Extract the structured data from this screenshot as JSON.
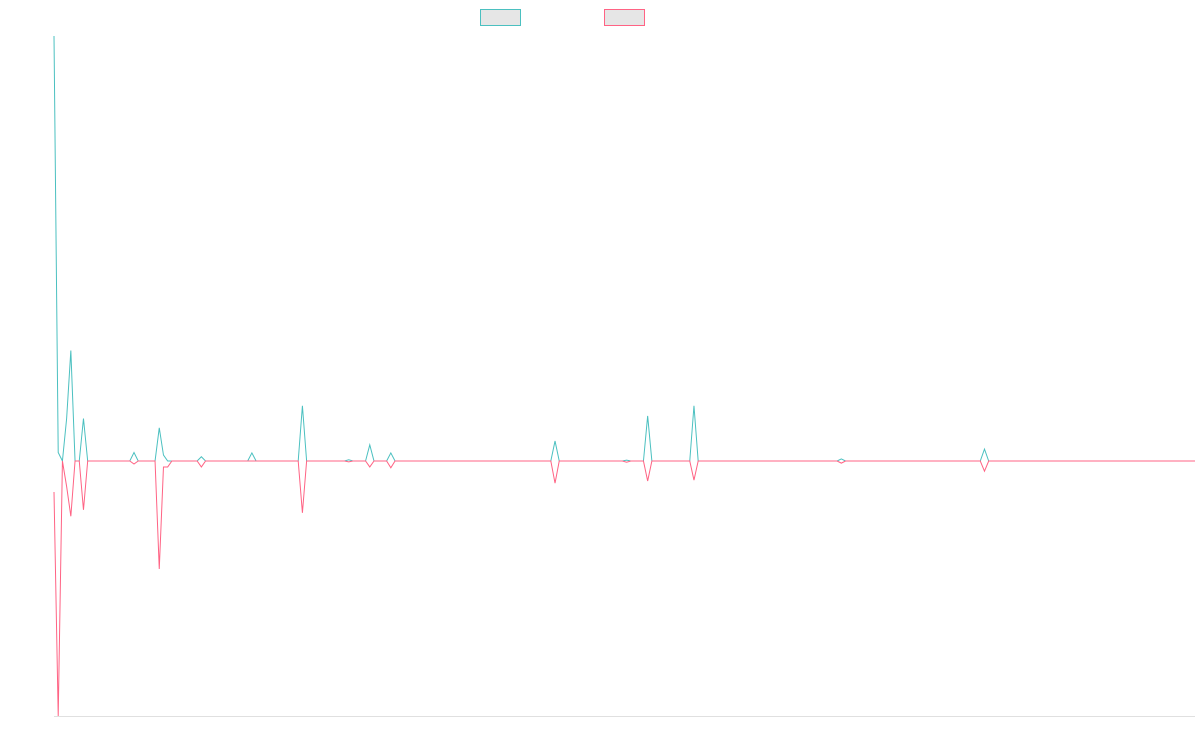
{
  "chart_data": {
    "type": "line",
    "x": [
      0,
      1,
      2,
      3,
      4,
      5,
      6,
      7,
      8,
      18,
      19,
      20,
      24,
      25,
      26,
      27,
      28,
      34,
      35,
      36,
      46,
      47,
      48,
      58,
      59,
      60,
      69,
      70,
      71,
      74,
      75,
      76,
      79,
      80,
      81,
      118,
      119,
      120,
      135,
      136,
      137,
      140,
      141,
      142,
      151,
      152,
      153,
      186,
      187,
      188,
      220,
      221,
      222,
      271
    ],
    "xlim": [
      0,
      271
    ],
    "ylim": [
      -0.6,
      1.0
    ],
    "series": [
      {
        "color": "#4bc0c0",
        "values": [
          1.0,
          0.02,
          0,
          0.1,
          0.26,
          0,
          0,
          0.1,
          0,
          0,
          0.02,
          0,
          0,
          0.078,
          0.014,
          0,
          0,
          0,
          0.01,
          0,
          0,
          0.019,
          0,
          0,
          0.13,
          0,
          0,
          0.003,
          0,
          0,
          0.038,
          0,
          0,
          0.019,
          0,
          0,
          0.047,
          0,
          0,
          0.002,
          0,
          0,
          0.106,
          0,
          0,
          0.13,
          0,
          0,
          0.005,
          0,
          0,
          0.028,
          0,
          0
        ]
      },
      {
        "color": "#ff6384",
        "values": [
          -0.073,
          -0.6,
          0,
          -0.06,
          -0.13,
          0,
          0,
          -0.115,
          0,
          0,
          -0.007,
          0,
          0,
          -0.254,
          -0.014,
          -0.014,
          0,
          0,
          -0.014,
          0,
          0,
          0,
          0,
          0,
          -0.122,
          0,
          0,
          -0.002,
          0,
          0,
          -0.014,
          0,
          0,
          -0.016,
          0,
          0,
          -0.052,
          0,
          0,
          -0.003,
          0,
          0,
          -0.047,
          0,
          0,
          -0.045,
          0,
          0,
          -0.005,
          0,
          0,
          -0.024,
          0,
          0
        ]
      }
    ]
  }
}
